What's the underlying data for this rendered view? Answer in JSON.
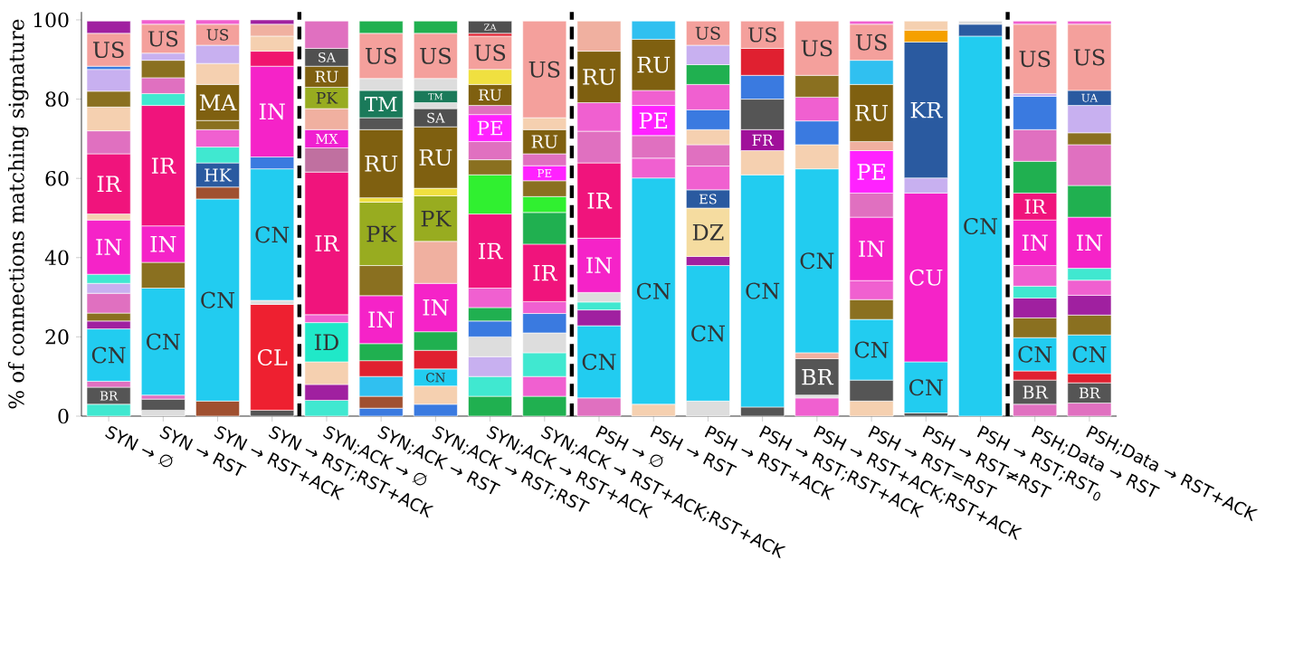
{
  "chart_data": {
    "type": "bar",
    "stacked": true,
    "ylabel": "% of connections matching signature",
    "categories": [
      "SYN → ∅",
      "SYN → RST",
      "SYN → RST+ACK",
      "SYN → RST;RST+ACK",
      "SYN;ACK → ∅",
      "SYN;ACK → RST",
      "SYN;ACK → RST;RST",
      "SYN;ACK → RST+ACK",
      "SYN;ACK → RST+ACK;RST+ACK",
      "PSH → ∅",
      "PSH → RST",
      "PSH → RST+ACK",
      "PSH → RST;RST+ACK",
      "PSH → RST+ACK;RST+ACK",
      "PSH → RST=RST",
      "PSH → RST≠RST",
      "PSH → RST;RST$_{0}$",
      "PSH;Data → RST",
      "PSH;Data → RST+ACK"
    ],
    "ylim": [
      0,
      102
    ],
    "yticks": [
      0,
      20,
      40,
      60,
      80,
      100
    ],
    "series": [
      {
        "values": [
          3.0,
          1.5,
          3.8,
          1.5,
          4,
          2,
          3,
          5,
          5,
          4.6,
          3,
          3.8,
          2.3,
          4.6,
          3.8,
          0.8,
          95.9,
          3,
          3.3
        ],
        "colors": [
          "#40e8d0",
          "#dddddd",
          "#a05030",
          "#555555",
          "#40e8d0",
          "#3a7ae0",
          "#3a7ae0",
          "#20b050",
          "#20b050",
          "#e070c0",
          "#f5d0b0",
          "#dddddd",
          "#555555",
          "#f060d0",
          "#f5d0b0",
          "#555555",
          "#22ccf0",
          "#e070c0",
          "#e070c0"
        ],
        "value_labels": [
          null,
          null,
          null,
          null,
          null,
          null,
          null,
          null,
          null,
          null,
          null,
          null,
          null,
          null,
          null,
          null,
          "CN",
          null,
          null
        ]
      },
      {
        "values": [
          4.3,
          2.8,
          51,
          26.7,
          4,
          3,
          4.6,
          5,
          5,
          18.2,
          57.1,
          34.2,
          58.6,
          0.7,
          5.3,
          12.9,
          3,
          6.1,
          5.1
        ],
        "colors": [
          "#555555",
          "#555555",
          "#22ccf0",
          "#ee2030",
          "#a020a0",
          "#a05030",
          "#f5d0b0",
          "#40e8d0",
          "#f060d0",
          "#22ccf0",
          "#22ccf0",
          "#22ccf0",
          "#22ccf0",
          "#dddddd",
          "#555555",
          "#22ccf0",
          "#2a5aa0",
          "#555555",
          "#555555"
        ],
        "value_labels": [
          "BR",
          null,
          "CN",
          "CL",
          null,
          null,
          null,
          null,
          null,
          "CN",
          "CN",
          "CN",
          "CN",
          null,
          null,
          "CN",
          null,
          "BR",
          "BR"
        ]
      },
      {
        "values": [
          1.5,
          1.0,
          3,
          1.0,
          5.7,
          5,
          4.3,
          5,
          6,
          4,
          5,
          2.3,
          6.1,
          9.2,
          15.3,
          42.6,
          0.8,
          2.3,
          2.3
        ],
        "colors": [
          "#e070c0",
          "#e070c0",
          "#a05030",
          "#dddddd",
          "#f5d0b0",
          "#30c0f0",
          "#22ccf0",
          "#c8b0f0",
          "#40e8d0",
          "#a020a0",
          "#f060d0",
          "#a020a0",
          "#f5d0b0",
          "#555555",
          "#22ccf0",
          "#f523c8",
          "#dddddd",
          "#e02030",
          "#e02030"
        ],
        "value_labels": [
          null,
          null,
          null,
          null,
          null,
          null,
          "CN",
          null,
          null,
          null,
          null,
          null,
          null,
          "BR",
          "CN",
          "CU",
          null,
          null,
          null
        ]
      },
      {
        "values": [
          13.2,
          27,
          6.1,
          33.2,
          9.9,
          4,
          4.7,
          5,
          5,
          2,
          5.7,
          12.2,
          5.3,
          1.5,
          5,
          3.8,
          null,
          8.4,
          9.8
        ],
        "colors": [
          "#22ccf0",
          "#22ccf0",
          "#2a5aa0",
          "#22ccf0",
          "#20e8c8",
          "#e02030",
          "#e02030",
          "#dddddd",
          "#dddddd",
          "#40e8d0",
          "#e070c0",
          "#f5dca0",
          "#a0109a",
          "#f0b0a0",
          "#8a7020",
          "#c8b0f0",
          null,
          "#22ccf0",
          "#22ccf0"
        ],
        "value_labels": [
          "CN",
          "CN",
          "HK",
          "CN",
          "ID",
          null,
          null,
          null,
          null,
          null,
          null,
          "DZ",
          "FR",
          null,
          null,
          null,
          null,
          "CN",
          "CN"
        ]
      },
      {
        "values": [
          2,
          6.5,
          4,
          3,
          2,
          4.3,
          4.7,
          4,
          4.9,
          2.4,
          7.6,
          4.6,
          7.7,
          46.4,
          4.8,
          34.3,
          null,
          5,
          5
        ],
        "colors": [
          "#a020a0",
          "#8a7020",
          "#40e8d0",
          "#3a7ae0",
          "#f060d0",
          "#20b050",
          "#20b050",
          "#3a7ae0",
          "#3a7ae0",
          "#dddddd",
          "#ff22ff",
          "#2a5aa0",
          "#555555",
          "#22ccf0",
          "#f060d0",
          "#2a5aa0",
          null,
          "#8a7020",
          "#8a7020"
        ],
        "value_labels": [
          null,
          null,
          null,
          null,
          null,
          null,
          null,
          null,
          null,
          null,
          "PE",
          "ES",
          null,
          "CN",
          null,
          "KR",
          null,
          null,
          null
        ]
      },
      {
        "values": [
          2,
          9.2,
          4.4,
          22.9,
          36,
          12.1,
          12.2,
          3.4,
          3,
          13.7,
          3.8,
          6,
          6,
          6.1,
          16,
          3,
          null,
          5,
          5
        ],
        "colors": [
          "#8a7020",
          "#f523c8",
          "#f060d0",
          "#f523c8",
          "#f0147c",
          "#f523c8",
          "#f523c8",
          "#20b050",
          "#f060d0",
          "#f523c8",
          "#f060d0",
          "#f060d0",
          "#3a7ae0",
          "#f5d0b0",
          "#f523c8",
          "#f5a000",
          null,
          "#a020a0",
          "#a020a0"
        ],
        "value_labels": [
          null,
          "IN",
          null,
          "IN",
          "IR",
          "IN",
          "IN",
          null,
          null,
          "IN",
          null,
          null,
          null,
          null,
          "IN",
          null,
          null,
          null,
          null
        ]
      },
      {
        "values": [
          5,
          30.4,
          2.3,
          3.8,
          6.1,
          7.6,
          10.6,
          4.9,
          14.5,
          19,
          12.9,
          5.4,
          6.8,
          6,
          6.1,
          2.3,
          null,
          3,
          3.8
        ],
        "colors": [
          "#e070c0",
          "#f0147c",
          "#8a7020",
          "#f0146e",
          "#c070a0",
          "#8a7020",
          "#f0b0a0",
          "#f060d0",
          "#f0147c",
          "#f0147c",
          "#7f6010",
          "#e070c0",
          "#e02030",
          "#3a7ae0",
          "#e070c0",
          "#f5d0b0",
          null,
          "#40e8d0",
          "#f060d0"
        ],
        "value_labels": [
          null,
          "IR",
          null,
          null,
          null,
          null,
          null,
          null,
          "IR",
          "IR",
          "RU",
          null,
          null,
          null,
          null,
          null,
          null,
          null,
          null
        ]
      },
      {
        "values": [
          2.5,
          3,
          9.1,
          3.8,
          4.6,
          16,
          11.5,
          18.7,
          8,
          8,
          4.6,
          3.8,
          6.9,
          6,
          10.7,
          null,
          null,
          5.2,
          3
        ],
        "colors": [
          "#c8b0f0",
          "#40e8d0",
          "#7f6010",
          "#f5d0b0",
          "#f020d0",
          "#98ac20",
          "#98ac20",
          "#f0147c",
          "#20b050",
          "#e070c0",
          "#30c0f0",
          "#f5d0b0",
          "#f4a09c",
          "#f060d0",
          "#ff22ff",
          null,
          null,
          "#f060d0",
          "#40e8d0"
        ],
        "value_labels": [
          null,
          null,
          "MA",
          null,
          "MX",
          "PK",
          "PK",
          "IR",
          null,
          null,
          null,
          null,
          "US",
          null,
          "PE",
          null,
          null,
          null,
          null
        ]
      },
      {
        "values": [
          2.3,
          4,
          5.3,
          3,
          5.3,
          1.1,
          1.9,
          9.9,
          4,
          7.2,
          null,
          5,
          null,
          5.5,
          2.3,
          null,
          null,
          11.5,
          12.9
        ],
        "colors": [
          "#40e8d0",
          "#e070c0",
          "#f5d0b0",
          "#f0b0a0",
          "#f0b0a0",
          "#f0e040",
          "#f0e040",
          "#30f030",
          "#30f030",
          "#f060d0",
          null,
          "#3a7ae0",
          null,
          "#8a7020",
          "#f0b0a0",
          null,
          null,
          "#f523c8",
          "#f523c8"
        ],
        "value_labels": [
          null,
          null,
          null,
          null,
          null,
          null,
          null,
          null,
          null,
          null,
          null,
          null,
          null,
          null,
          null,
          null,
          null,
          "IN",
          "IN"
        ]
      },
      {
        "values": [
          13.7,
          4.4,
          4.6,
          1.1,
          5.4,
          17.2,
          15.5,
          3.8,
          4,
          13,
          null,
          6.4,
          null,
          13.7,
          14.4,
          null,
          null,
          6.8,
          8
        ],
        "colors": [
          "#f523c8",
          "#8a7020",
          "#c8b0f0",
          "#a020a0",
          "#98ac20",
          "#7f6010",
          "#7f6010",
          "#8a7020",
          "#8a7020",
          "#7f6010",
          null,
          "#f060d0",
          null,
          "#f4a09c",
          "#7f6010",
          null,
          null,
          "#f0147c",
          "#20b050"
        ],
        "value_labels": [
          "IN",
          null,
          null,
          null,
          "PK",
          "RU",
          "RU",
          null,
          null,
          "RU",
          null,
          null,
          null,
          "US",
          "RU",
          null,
          null,
          "IR",
          null
        ]
      },
      {
        "values": [
          1.5,
          1.8,
          5.3,
          null,
          5.3,
          3,
          4.6,
          4.6,
          3.8,
          7.6,
          null,
          5,
          null,
          null,
          6.1,
          null,
          null,
          8,
          10.3
        ],
        "colors": [
          "#f5d0b0",
          "#c8b0f0",
          "#f4a09c",
          null,
          "#7f6010",
          "#555555",
          "#505050",
          "#e070c0",
          "#ff22ff",
          "#f0b0a0",
          null,
          "#20b050",
          null,
          null,
          "#30c0f0",
          null,
          null,
          "#20b050",
          "#e070c0"
        ],
        "value_labels": [
          null,
          null,
          "US",
          null,
          "RU",
          null,
          "SA",
          null,
          "PE",
          null,
          null,
          null,
          null,
          null,
          null,
          null,
          null,
          null,
          null
        ]
      },
      {
        "values": [
          15.2,
          7.3,
          1.1,
          null,
          4.5,
          6.9,
          1.5,
          6.8,
          3,
          null,
          null,
          4.9,
          null,
          null,
          9.1,
          null,
          null,
          8,
          3
        ],
        "colors": [
          "#f0147c",
          "#f4a09c",
          "#f060d0",
          null,
          "#505050",
          "#1a7a5a",
          "#dddddd",
          "#ff22ff",
          "#e070c0",
          null,
          null,
          "#c8b0f0",
          null,
          null,
          "#f4a09c",
          null,
          null,
          "#e070c0",
          "#8a7020"
        ],
        "value_labels": [
          "IR",
          "US",
          null,
          null,
          "SA",
          "TM",
          null,
          "PE",
          null,
          null,
          null,
          null,
          null,
          null,
          "US",
          null,
          null,
          null,
          null
        ]
      },
      {
        "values": [
          5.8,
          1.1,
          null,
          null,
          6.9,
          3,
          3.1,
          2.3,
          6.1,
          null,
          null,
          6.1,
          null,
          null,
          0.8,
          null,
          null,
          8.4,
          6.9
        ],
        "colors": [
          "#e070c0",
          "#f060d0",
          null,
          null,
          "#e070c0",
          "#dddddd",
          "#1a7a5a",
          "#e070c0",
          "#7f6010",
          null,
          null,
          "#f4a09c",
          null,
          null,
          "#f060d0",
          null,
          null,
          "#3a7ae0",
          "#c8b0f0"
        ],
        "value_labels": [
          null,
          null,
          null,
          null,
          null,
          null,
          "TM",
          null,
          "RU",
          null,
          null,
          "US",
          null,
          null,
          null,
          null,
          null,
          null,
          null
        ]
      },
      {
        "values": [
          6,
          null,
          null,
          null,
          null,
          11.4,
          3,
          5.3,
          3,
          null,
          null,
          null,
          null,
          null,
          null,
          null,
          null,
          0.7,
          3.8
        ],
        "colors": [
          "#f5d0b0",
          null,
          null,
          null,
          null,
          "#f4a09c",
          "#dddddd",
          "#7f6010",
          "#f5d0b0",
          null,
          null,
          null,
          null,
          null,
          null,
          null,
          null,
          "#c8b0f0",
          "#2a5aa0"
        ],
        "value_labels": [
          null,
          null,
          null,
          null,
          null,
          "US",
          null,
          "RU",
          null,
          null,
          null,
          null,
          null,
          null,
          null,
          null,
          null,
          null,
          "UA"
        ]
      },
      {
        "values": [
          4,
          null,
          null,
          null,
          null,
          3.1,
          11.4,
          3.8,
          24.4,
          null,
          null,
          null,
          null,
          null,
          null,
          null,
          null,
          17.5,
          16.7
        ],
        "colors": [
          "#8a7020",
          null,
          null,
          null,
          null,
          "#20b050",
          "#f4a09c",
          "#f0e040",
          "#f4a09c",
          null,
          null,
          null,
          null,
          null,
          null,
          null,
          null,
          "#f4a09c",
          "#f4a09c"
        ],
        "value_labels": [
          null,
          null,
          null,
          null,
          null,
          null,
          "US",
          null,
          "US",
          null,
          null,
          null,
          null,
          null,
          null,
          null,
          null,
          "US",
          "US"
        ]
      },
      {
        "values": [
          5.5,
          null,
          null,
          null,
          null,
          null,
          3.1,
          8.4,
          null,
          null,
          null,
          null,
          null,
          null,
          null,
          null,
          null,
          0.8,
          0.8
        ],
        "colors": [
          "#c8b0f0",
          null,
          null,
          null,
          null,
          null,
          "#20b050",
          "#f4a09c",
          null,
          null,
          null,
          null,
          null,
          null,
          null,
          null,
          null,
          "#f060d0",
          "#f060d0"
        ],
        "value_labels": [
          null,
          null,
          null,
          null,
          null,
          null,
          null,
          "US",
          null,
          null,
          null,
          null,
          null,
          null,
          null,
          null,
          null,
          null,
          null
        ]
      },
      {
        "values": [
          0.8,
          null,
          null,
          null,
          null,
          null,
          null,
          0.7,
          null,
          null,
          null,
          null,
          null,
          null,
          null,
          null,
          null,
          null,
          null
        ],
        "colors": [
          "#3a7ae0",
          null,
          null,
          null,
          null,
          null,
          null,
          "#e02030",
          null,
          null,
          null,
          null,
          null,
          null,
          null,
          null,
          null,
          null,
          null
        ]
      },
      {
        "values": [
          8.3,
          null,
          null,
          null,
          null,
          null,
          null,
          3.1,
          null,
          null,
          null,
          null,
          null,
          null,
          null,
          null,
          null,
          null,
          null
        ],
        "colors": [
          "#f4a09c",
          null,
          null,
          null,
          null,
          null,
          null,
          "#505050",
          null,
          null,
          null,
          null,
          null,
          null,
          null,
          null,
          null,
          null,
          null
        ],
        "value_labels": [
          "US",
          null,
          null,
          null,
          null,
          null,
          null,
          "ZA",
          null,
          null,
          null,
          null,
          null,
          null,
          null,
          null,
          null,
          null,
          null
        ]
      },
      {
        "values": [
          3.1,
          null,
          null,
          null,
          null,
          null,
          null,
          null,
          null,
          null,
          null,
          null,
          null,
          null,
          null,
          null,
          null,
          null,
          null
        ],
        "colors": [
          "#a020a0",
          null,
          null,
          null,
          null,
          null,
          null,
          null,
          null,
          null,
          null,
          null,
          null,
          null,
          null,
          null,
          null,
          null,
          null
        ]
      }
    ]
  }
}
